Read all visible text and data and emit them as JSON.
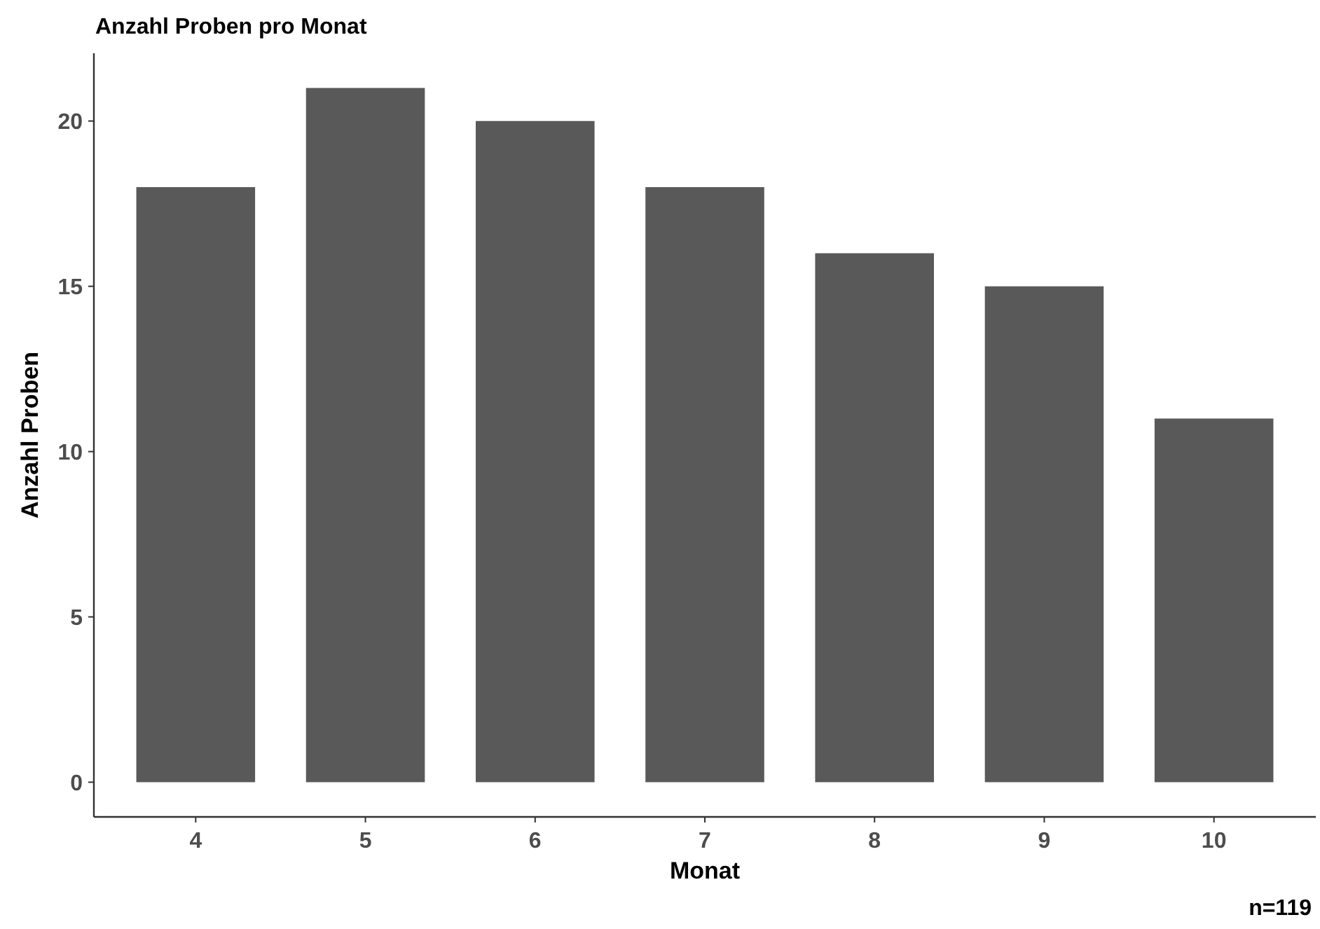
{
  "chart_data": {
    "type": "bar",
    "title": "Anzahl Proben pro Monat",
    "xlabel": "Monat",
    "ylabel": "Anzahl Proben",
    "categories": [
      "4",
      "5",
      "6",
      "7",
      "8",
      "9",
      "10"
    ],
    "values": [
      18,
      21,
      20,
      18,
      16,
      15,
      11
    ],
    "color": "#595959",
    "ylim": [
      -1.05,
      22.05
    ],
    "yticks": [
      0,
      5,
      10,
      15,
      20
    ],
    "grid": false,
    "annotations": [
      "n=119"
    ]
  }
}
